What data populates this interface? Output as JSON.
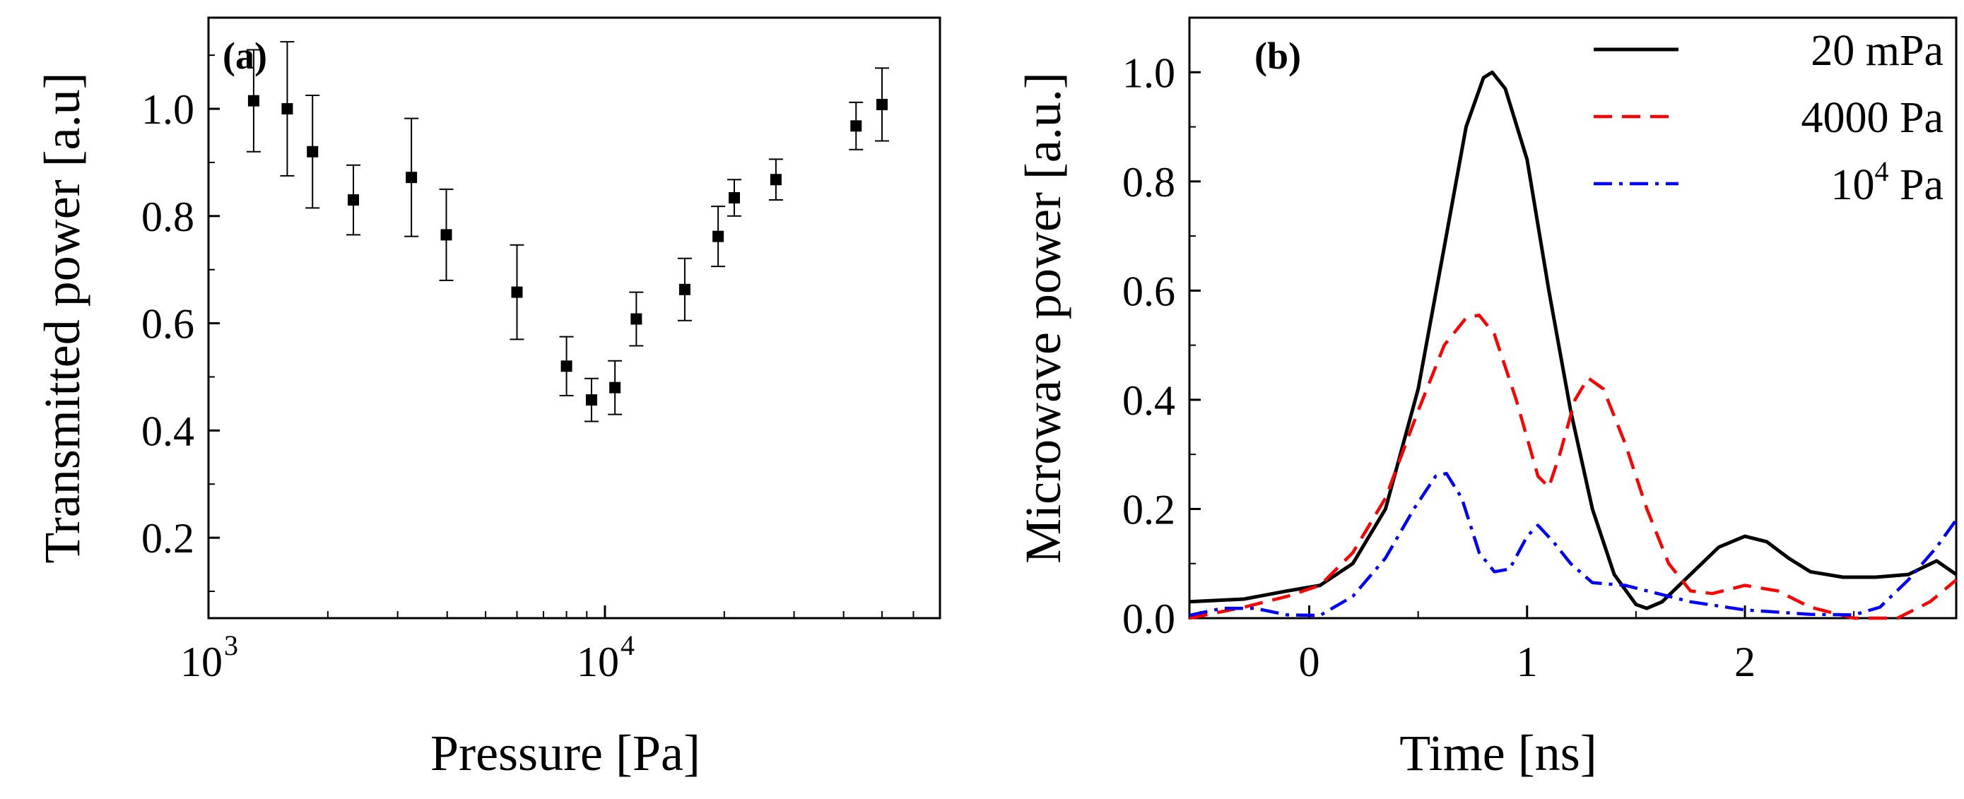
{
  "chart_data": [
    {
      "panel_label": "(a)",
      "type": "scatter",
      "xlabel": "Pressure [Pa]",
      "ylabel": "Transmitted power [a.u]",
      "xscale": "log",
      "xlim": [
        1000,
        70000
      ],
      "ylim": [
        0.05,
        1.17
      ],
      "xticks": [
        1000,
        10000
      ],
      "xtick_labels": [
        {
          "base": "10",
          "exp": "3"
        },
        {
          "base": "10",
          "exp": "4"
        }
      ],
      "yticks": [
        0.2,
        0.4,
        0.6,
        0.8,
        1.0
      ],
      "ytick_labels": [
        "0.2",
        "0.4",
        "0.6",
        "0.8",
        "1.0"
      ],
      "grid": false,
      "points": [
        {
          "x": 1300,
          "y": 1.015,
          "yerr": 0.095
        },
        {
          "x": 1580,
          "y": 1.0,
          "yerr": 0.125
        },
        {
          "x": 1830,
          "y": 0.92,
          "yerr": 0.105
        },
        {
          "x": 2320,
          "y": 0.83,
          "yerr": 0.065
        },
        {
          "x": 3250,
          "y": 0.872,
          "yerr": 0.11
        },
        {
          "x": 3980,
          "y": 0.765,
          "yerr": 0.085
        },
        {
          "x": 6000,
          "y": 0.658,
          "yerr": 0.088
        },
        {
          "x": 8000,
          "y": 0.52,
          "yerr": 0.055
        },
        {
          "x": 9250,
          "y": 0.457,
          "yerr": 0.04
        },
        {
          "x": 10600,
          "y": 0.48,
          "yerr": 0.05
        },
        {
          "x": 12000,
          "y": 0.608,
          "yerr": 0.05
        },
        {
          "x": 15900,
          "y": 0.663,
          "yerr": 0.058
        },
        {
          "x": 19300,
          "y": 0.762,
          "yerr": 0.056
        },
        {
          "x": 21200,
          "y": 0.834,
          "yerr": 0.034
        },
        {
          "x": 27000,
          "y": 0.868,
          "yerr": 0.038
        },
        {
          "x": 43000,
          "y": 0.968,
          "yerr": 0.044
        },
        {
          "x": 50000,
          "y": 1.008,
          "yerr": 0.068
        }
      ]
    },
    {
      "panel_label": "(b)",
      "type": "line",
      "xlabel": "Time [ns]",
      "ylabel": "Microwave power [a.u.]",
      "xlim": [
        -0.55,
        2.97
      ],
      "ylim": [
        0.0,
        1.1
      ],
      "xticks": [
        0,
        1,
        2
      ],
      "xtick_labels": [
        "0",
        "1",
        "2"
      ],
      "yticks": [
        0.0,
        0.2,
        0.4,
        0.6,
        0.8,
        1.0
      ],
      "ytick_labels": [
        "0.0",
        "0.2",
        "0.4",
        "0.6",
        "0.8",
        "1.0"
      ],
      "grid": false,
      "legend_position": "top-right",
      "series": [
        {
          "name": "20 mPa",
          "color": "#000000",
          "style": "solid",
          "points": [
            [
              -0.55,
              0.03
            ],
            [
              -0.3,
              0.035
            ],
            [
              -0.1,
              0.05
            ],
            [
              0.05,
              0.06
            ],
            [
              0.2,
              0.1
            ],
            [
              0.35,
              0.2
            ],
            [
              0.5,
              0.42
            ],
            [
              0.62,
              0.68
            ],
            [
              0.72,
              0.9
            ],
            [
              0.8,
              0.99
            ],
            [
              0.84,
              1.0
            ],
            [
              0.9,
              0.97
            ],
            [
              1.0,
              0.84
            ],
            [
              1.1,
              0.6
            ],
            [
              1.2,
              0.38
            ],
            [
              1.3,
              0.2
            ],
            [
              1.4,
              0.08
            ],
            [
              1.5,
              0.025
            ],
            [
              1.55,
              0.018
            ],
            [
              1.62,
              0.03
            ],
            [
              1.75,
              0.08
            ],
            [
              1.88,
              0.13
            ],
            [
              2.0,
              0.15
            ],
            [
              2.1,
              0.14
            ],
            [
              2.2,
              0.11
            ],
            [
              2.3,
              0.085
            ],
            [
              2.45,
              0.075
            ],
            [
              2.6,
              0.075
            ],
            [
              2.75,
              0.08
            ],
            [
              2.88,
              0.105
            ],
            [
              2.97,
              0.08
            ]
          ]
        },
        {
          "name": "4000 Pa",
          "color": "#ff0000",
          "style": "dashed",
          "points": [
            [
              -0.55,
              0.0
            ],
            [
              -0.3,
              0.02
            ],
            [
              -0.1,
              0.04
            ],
            [
              0.05,
              0.06
            ],
            [
              0.2,
              0.12
            ],
            [
              0.35,
              0.22
            ],
            [
              0.5,
              0.38
            ],
            [
              0.62,
              0.5
            ],
            [
              0.72,
              0.55
            ],
            [
              0.78,
              0.555
            ],
            [
              0.85,
              0.52
            ],
            [
              0.95,
              0.4
            ],
            [
              1.05,
              0.26
            ],
            [
              1.1,
              0.24
            ],
            [
              1.15,
              0.3
            ],
            [
              1.22,
              0.4
            ],
            [
              1.28,
              0.44
            ],
            [
              1.35,
              0.42
            ],
            [
              1.45,
              0.32
            ],
            [
              1.55,
              0.2
            ],
            [
              1.65,
              0.1
            ],
            [
              1.75,
              0.05
            ],
            [
              1.85,
              0.045
            ],
            [
              2.0,
              0.06
            ],
            [
              2.15,
              0.05
            ],
            [
              2.3,
              0.02
            ],
            [
              2.5,
              0.0
            ],
            [
              2.7,
              0.0
            ],
            [
              2.85,
              0.03
            ],
            [
              2.97,
              0.07
            ]
          ]
        },
        {
          "name": "10^4 Pa",
          "color": "#0000ff",
          "style": "dashdot",
          "points": [
            [
              -0.55,
              0.005
            ],
            [
              -0.4,
              0.018
            ],
            [
              -0.25,
              0.018
            ],
            [
              -0.1,
              0.006
            ],
            [
              0.05,
              0.005
            ],
            [
              0.2,
              0.04
            ],
            [
              0.35,
              0.11
            ],
            [
              0.48,
              0.2
            ],
            [
              0.58,
              0.26
            ],
            [
              0.63,
              0.265
            ],
            [
              0.7,
              0.22
            ],
            [
              0.78,
              0.12
            ],
            [
              0.85,
              0.085
            ],
            [
              0.92,
              0.09
            ],
            [
              1.0,
              0.15
            ],
            [
              1.05,
              0.17
            ],
            [
              1.12,
              0.14
            ],
            [
              1.2,
              0.1
            ],
            [
              1.3,
              0.065
            ],
            [
              1.45,
              0.06
            ],
            [
              1.6,
              0.045
            ],
            [
              1.75,
              0.03
            ],
            [
              2.0,
              0.015
            ],
            [
              2.3,
              0.007
            ],
            [
              2.5,
              0.006
            ],
            [
              2.62,
              0.02
            ],
            [
              2.75,
              0.07
            ],
            [
              2.88,
              0.13
            ],
            [
              2.97,
              0.18
            ]
          ]
        }
      ]
    }
  ],
  "legend": {
    "entries": [
      {
        "base": "20 mPa",
        "exp": "",
        "suffix": ""
      },
      {
        "base": "4000 Pa",
        "exp": "",
        "suffix": ""
      },
      {
        "base": "10",
        "exp": "4",
        "suffix": " Pa"
      }
    ]
  }
}
